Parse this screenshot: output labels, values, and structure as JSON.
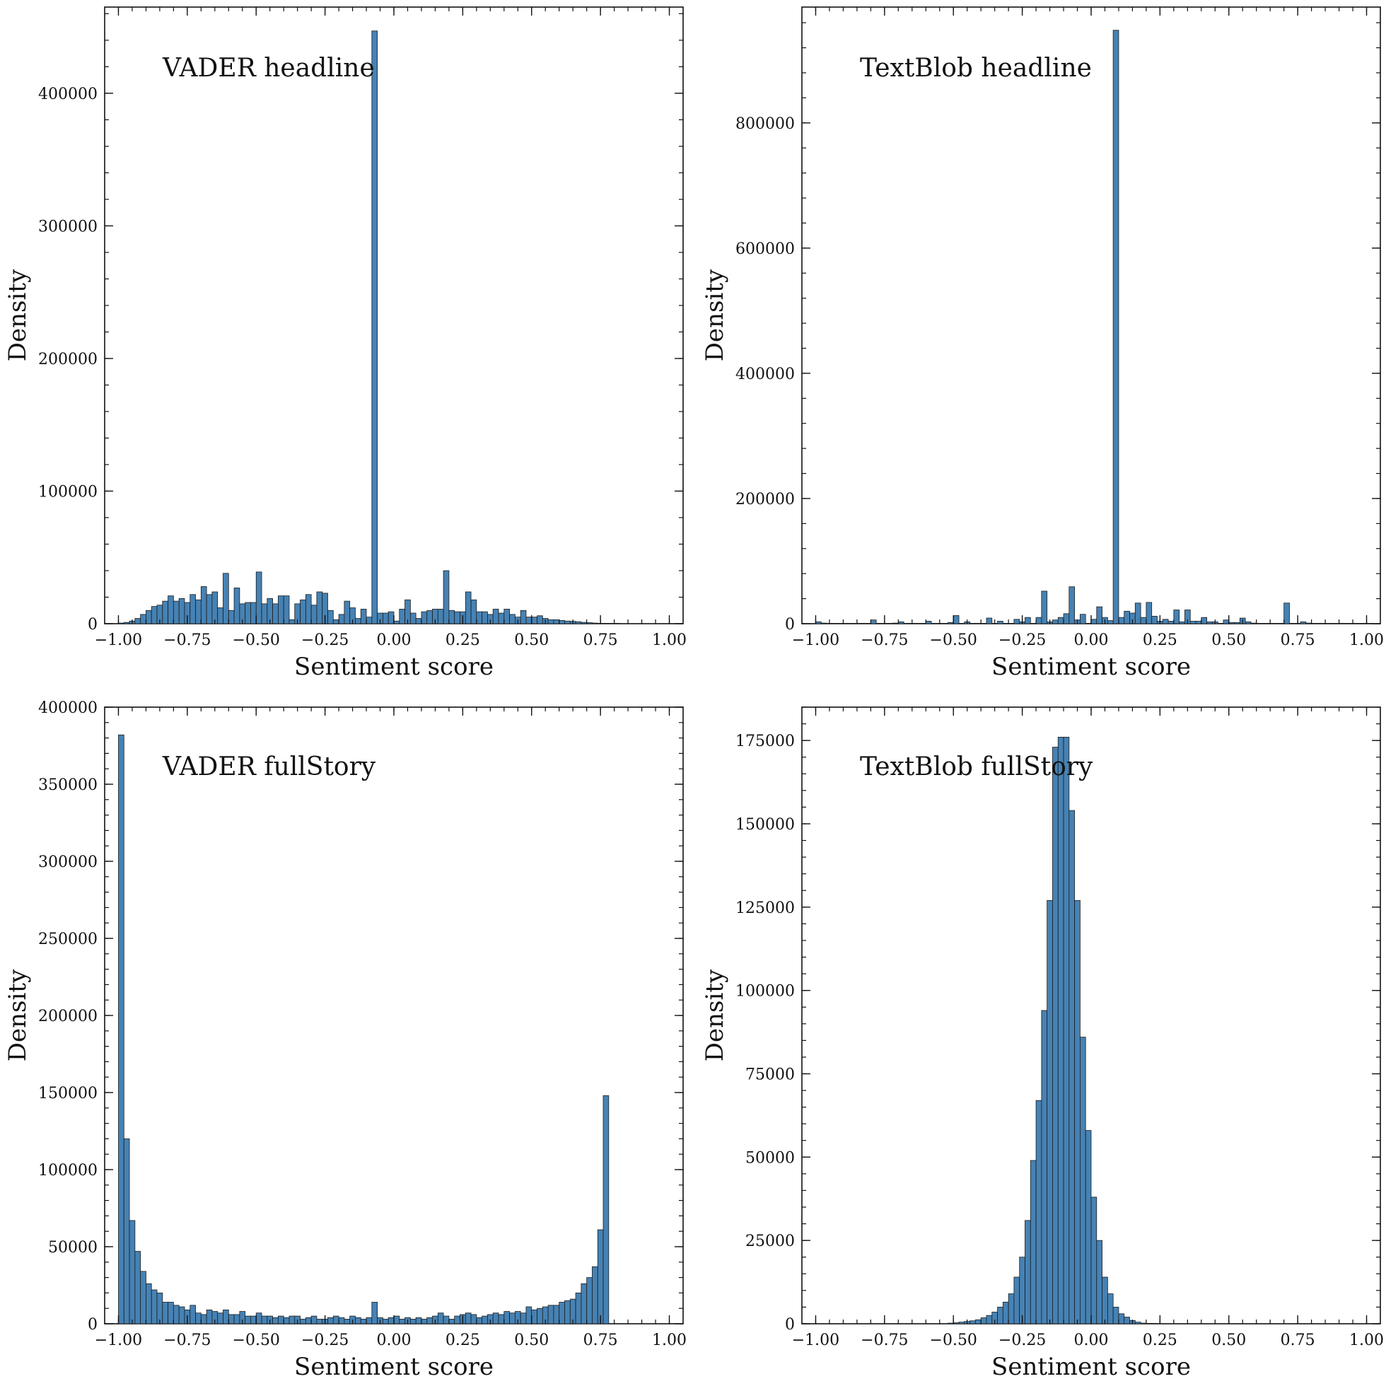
{
  "style": {
    "bar_fill": "#4682b4",
    "bar_edge": "#1d1d1d",
    "axis_color": "#111111"
  },
  "chart_data": [
    {
      "type": "bar",
      "title": "VADER headline",
      "xlabel": "Sentiment score",
      "ylabel": "Density",
      "xlim": [
        -1.05,
        1.05
      ],
      "ylim": [
        0,
        465000
      ],
      "xticks": [
        -1.0,
        -0.75,
        -0.5,
        -0.25,
        0.0,
        0.25,
        0.5,
        0.75,
        1.0
      ],
      "xtick_labels": [
        "−1.00",
        "−0.75",
        "−0.50",
        "−0.25",
        "0.00",
        "0.25",
        "0.50",
        "0.75",
        "1.00"
      ],
      "yticks": [
        0,
        100000,
        200000,
        300000,
        400000
      ],
      "ytick_labels": [
        "0",
        "100000",
        "200000",
        "300000",
        "400000"
      ],
      "grid": false,
      "bin_start": -1.0,
      "bin_width": 0.02,
      "values": [
        500,
        1000,
        2000,
        4000,
        7000,
        10000,
        13000,
        14000,
        17000,
        21000,
        17000,
        19000,
        16000,
        22000,
        18000,
        28000,
        22000,
        24000,
        12000,
        38000,
        10000,
        27000,
        15000,
        16000,
        16000,
        39000,
        15000,
        19000,
        15000,
        21000,
        21000,
        3000,
        15000,
        18000,
        22000,
        14000,
        24000,
        23000,
        10000,
        3000,
        7000,
        17000,
        12000,
        4000,
        11000,
        5000,
        447000,
        8000,
        8000,
        9000,
        2000,
        11000,
        18000,
        8000,
        4000,
        9000,
        10000,
        11000,
        11000,
        40000,
        10000,
        9000,
        9000,
        24000,
        18000,
        9000,
        9000,
        7000,
        11000,
        8000,
        11000,
        7000,
        5000,
        10000,
        5000,
        5000,
        6000,
        4000,
        3000,
        3000,
        2500,
        2000,
        1800,
        1500,
        1000,
        800,
        500,
        300,
        200,
        100,
        50
      ]
    },
    {
      "type": "bar",
      "title": "TextBlob headline",
      "xlabel": "Sentiment score",
      "ylabel": "Density",
      "xlim": [
        -1.05,
        1.05
      ],
      "ylim": [
        0,
        985000
      ],
      "xticks": [
        -1.0,
        -0.75,
        -0.5,
        -0.25,
        0.0,
        0.25,
        0.5,
        0.75,
        1.0
      ],
      "xtick_labels": [
        "−1.00",
        "−0.75",
        "−0.50",
        "−0.25",
        "0.00",
        "0.25",
        "0.50",
        "0.75",
        "1.00"
      ],
      "yticks": [
        0,
        200000,
        400000,
        600000,
        800000
      ],
      "ytick_labels": [
        "0",
        "200000",
        "400000",
        "600000",
        "800000"
      ],
      "grid": false,
      "bin_start": -1.0,
      "bin_width": 0.02,
      "values": [
        3000,
        1000,
        500,
        200,
        500,
        500,
        500,
        500,
        500,
        500,
        6000,
        500,
        500,
        500,
        1000,
        3000,
        500,
        500,
        500,
        500,
        4000,
        500,
        500,
        500,
        2000,
        13000,
        500,
        3000,
        500,
        500,
        500,
        9000,
        500,
        4000,
        500,
        500,
        7000,
        3000,
        10000,
        500,
        10000,
        52000,
        3000,
        6000,
        10000,
        16000,
        59000,
        6000,
        15000,
        500,
        7000,
        27000,
        10000,
        5000,
        948000,
        10000,
        20000,
        17000,
        33000,
        10000,
        34000,
        12000,
        4000,
        7000,
        4000,
        22000,
        3000,
        22000,
        4000,
        4000,
        10000,
        3000,
        3000,
        500,
        6000,
        2000,
        2000,
        9000,
        3000,
        1000,
        500,
        500,
        500,
        500,
        500,
        33000,
        500,
        500,
        3000,
        1000,
        500,
        500,
        500,
        500,
        500,
        500,
        500,
        500,
        500,
        500,
        500
      ]
    },
    {
      "type": "bar",
      "title": "VADER fullStory",
      "xlabel": "Sentiment score",
      "ylabel": "Density",
      "xlim": [
        -1.05,
        1.05
      ],
      "ylim": [
        0,
        400000
      ],
      "xticks": [
        -1.0,
        -0.75,
        -0.5,
        -0.25,
        0.0,
        0.25,
        0.5,
        0.75,
        1.0
      ],
      "xtick_labels": [
        "−1.00",
        "−0.75",
        "−0.50",
        "−0.25",
        "0.00",
        "0.25",
        "0.50",
        "0.75",
        "1.00"
      ],
      "yticks": [
        0,
        50000,
        100000,
        150000,
        200000,
        250000,
        300000,
        350000,
        400000
      ],
      "ytick_labels": [
        "0",
        "50000",
        "100000",
        "150000",
        "200000",
        "250000",
        "300000",
        "350000",
        "400000"
      ],
      "grid": false,
      "bin_start": -1.0,
      "bin_width": 0.02,
      "values": [
        382000,
        120000,
        67000,
        47000,
        34000,
        26000,
        22000,
        20000,
        14000,
        14000,
        12000,
        11000,
        9000,
        12000,
        7000,
        6000,
        9000,
        8000,
        7000,
        9000,
        6000,
        6000,
        8000,
        5000,
        5000,
        7000,
        5000,
        5000,
        4000,
        5000,
        4000,
        5000,
        5000,
        3000,
        4000,
        5000,
        3000,
        3000,
        4000,
        5000,
        4000,
        3000,
        5000,
        4000,
        3000,
        4000,
        14000,
        4000,
        3000,
        4000,
        5000,
        3000,
        4000,
        3000,
        4000,
        3000,
        4000,
        5000,
        7000,
        5000,
        3000,
        5000,
        6000,
        7000,
        6000,
        4000,
        5000,
        6000,
        7000,
        6000,
        8000,
        7000,
        8000,
        7000,
        11000,
        9000,
        10000,
        11000,
        12000,
        12000,
        14000,
        15000,
        16000,
        20000,
        26000,
        30000,
        37000,
        61000,
        148000
      ]
    },
    {
      "type": "bar",
      "title": "TextBlob fullStory",
      "xlabel": "Sentiment score",
      "ylabel": "Density",
      "xlim": [
        -1.05,
        1.05
      ],
      "ylim": [
        0,
        185000
      ],
      "xticks": [
        -1.0,
        -0.75,
        -0.5,
        -0.25,
        0.0,
        0.25,
        0.5,
        0.75,
        1.0
      ],
      "xtick_labels": [
        "−1.00",
        "−0.75",
        "−0.50",
        "−0.25",
        "0.00",
        "0.25",
        "0.50",
        "0.75",
        "1.00"
      ],
      "yticks": [
        0,
        25000,
        50000,
        75000,
        100000,
        125000,
        150000,
        175000
      ],
      "ytick_labels": [
        "0",
        "25000",
        "50000",
        "75000",
        "100000",
        "125000",
        "150000",
        "175000"
      ],
      "grid": false,
      "bin_start": -1.0,
      "bin_width": 0.02,
      "values": [
        0,
        0,
        0,
        0,
        0,
        0,
        0,
        0,
        0,
        0,
        0,
        0,
        0,
        0,
        0,
        0,
        0,
        0,
        0,
        0,
        0,
        0,
        0,
        0,
        200,
        300,
        500,
        700,
        900,
        1200,
        1800,
        2500,
        3500,
        5000,
        6500,
        9000,
        14000,
        20000,
        31000,
        49000,
        67000,
        94000,
        127000,
        173000,
        176000,
        176000,
        154000,
        127000,
        86000,
        58000,
        38000,
        25000,
        14000,
        9000,
        5000,
        3000,
        2000,
        1000,
        500,
        200,
        100,
        50
      ]
    }
  ]
}
